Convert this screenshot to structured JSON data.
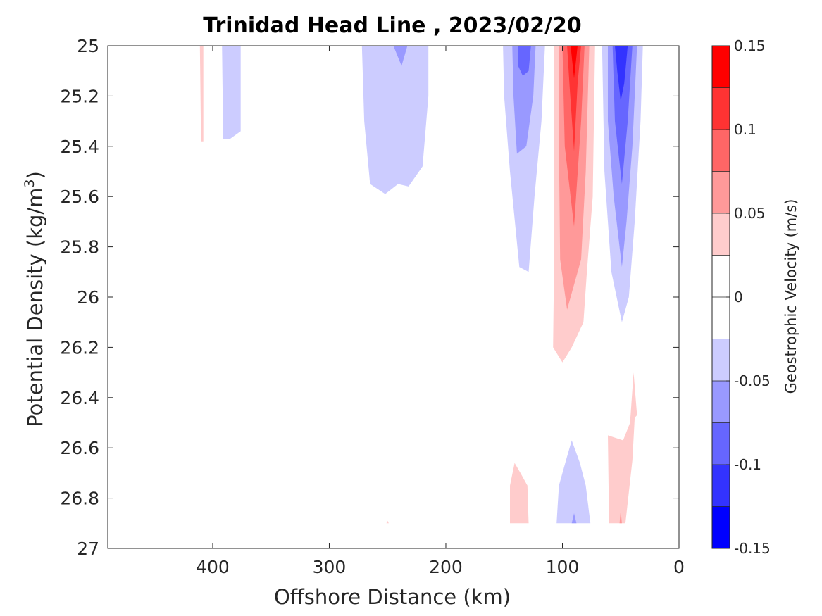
{
  "chart_data": {
    "type": "contour",
    "title": "Trinidad Head Line , 2023/02/20",
    "xlabel": "Offshore Distance (km)",
    "ylabel_main": "Potential Density (kg/m",
    "ylabel_sup": "3",
    "ylabel_close": ")",
    "xlim": [
      490,
      0
    ],
    "x_reversed": true,
    "ylim": [
      25,
      27
    ],
    "y_reversed": true,
    "xticks": [
      400,
      300,
      200,
      100,
      0
    ],
    "xtick_labels": [
      "400",
      "300",
      "200",
      "100",
      "0"
    ],
    "yticks": [
      25,
      25.2,
      25.4,
      25.6,
      25.8,
      26,
      26.2,
      26.4,
      26.6,
      26.8,
      27
    ],
    "ytick_labels": [
      "25",
      "25.2",
      "25.4",
      "25.6",
      "25.8",
      "26",
      "26.2",
      "26.4",
      "26.6",
      "26.8",
      "27"
    ],
    "colorbar": {
      "label": "Geostrophic Velocity (m/s)",
      "range": [
        -0.15,
        0.15
      ],
      "levels": [
        -0.15,
        -0.125,
        -0.1,
        -0.075,
        -0.05,
        -0.025,
        0,
        0.025,
        0.05,
        0.075,
        0.1,
        0.125,
        0.15
      ],
      "colors": [
        "#0000ff",
        "#3333ff",
        "#6666ff",
        "#9999ff",
        "#ccccff",
        "#ffffff",
        "#ffffff",
        "#ffcccc",
        "#ff9999",
        "#ff6666",
        "#ff3333",
        "#ff0000"
      ],
      "ticks": [
        0.15,
        0.1,
        0.05,
        0,
        -0.05,
        -0.1,
        -0.15
      ],
      "tick_labels": [
        "0.15",
        "0.1",
        "0.05",
        "0",
        "-0.05",
        "-0.1",
        "-0.15"
      ]
    },
    "filled_regions": [
      {
        "name": "pos-410",
        "color": "#ffcccc",
        "points": [
          [
            411,
            25
          ],
          [
            408,
            25
          ],
          [
            408,
            25.38
          ],
          [
            410,
            25.38
          ]
        ]
      },
      {
        "name": "neg-380",
        "color": "#ccccff",
        "points": [
          [
            392,
            25
          ],
          [
            376,
            25
          ],
          [
            376,
            25.34
          ],
          [
            385,
            25.37
          ],
          [
            391,
            25.37
          ]
        ]
      },
      {
        "name": "neg-250",
        "color": "#ccccff",
        "points": [
          [
            272,
            25
          ],
          [
            215,
            25
          ],
          [
            215,
            25.2
          ],
          [
            220,
            25.48
          ],
          [
            232,
            25.56
          ],
          [
            241,
            25.55
          ],
          [
            252,
            25.59
          ],
          [
            265,
            25.55
          ],
          [
            270,
            25.3
          ]
        ]
      },
      {
        "name": "neg-250-inner",
        "color": "#9999ff",
        "points": [
          [
            245,
            25
          ],
          [
            233,
            25
          ],
          [
            238,
            25.08
          ]
        ]
      },
      {
        "name": "neg-140",
        "color": "#ccccff",
        "points": [
          [
            151,
            25
          ],
          [
            115,
            25
          ],
          [
            118,
            25.3
          ],
          [
            124,
            25.6
          ],
          [
            129,
            25.9
          ],
          [
            137,
            25.88
          ],
          [
            145,
            25.5
          ],
          [
            150,
            25.2
          ]
        ]
      },
      {
        "name": "neg-140-l2",
        "color": "#9999ff",
        "points": [
          [
            143,
            25
          ],
          [
            123,
            25
          ],
          [
            125,
            25.2
          ],
          [
            131,
            25.4
          ],
          [
            139,
            25.43
          ],
          [
            142,
            25.2
          ]
        ]
      },
      {
        "name": "neg-140-l3",
        "color": "#6666ff",
        "points": [
          [
            138,
            25
          ],
          [
            127,
            25
          ],
          [
            129,
            25.1
          ],
          [
            134,
            25.12
          ],
          [
            138,
            25.08
          ]
        ]
      },
      {
        "name": "pos-95",
        "color": "#ffcccc",
        "points": [
          [
            107,
            25
          ],
          [
            72,
            25
          ],
          [
            74,
            25.6
          ],
          [
            79,
            25.9
          ],
          [
            82,
            26.1
          ],
          [
            92,
            26.2
          ],
          [
            100,
            26.26
          ],
          [
            108,
            26.2
          ],
          [
            107,
            25.8
          ]
        ]
      },
      {
        "name": "pos-95-l2",
        "color": "#ff9999",
        "points": [
          [
            103,
            25
          ],
          [
            77,
            25
          ],
          [
            80,
            25.5
          ],
          [
            84,
            25.85
          ],
          [
            96,
            26.05
          ],
          [
            102,
            25.85
          ],
          [
            103,
            25.4
          ]
        ]
      },
      {
        "name": "pos-95-l3",
        "color": "#ff6666",
        "points": [
          [
            100,
            25
          ],
          [
            81,
            25
          ],
          [
            84,
            25.3
          ],
          [
            90,
            25.72
          ],
          [
            98,
            25.4
          ]
        ]
      },
      {
        "name": "pos-95-l4",
        "color": "#ff3333",
        "points": [
          [
            96,
            25
          ],
          [
            84,
            25
          ],
          [
            87,
            25.15
          ],
          [
            90,
            25.42
          ],
          [
            94,
            25.15
          ]
        ]
      },
      {
        "name": "pos-95-l5",
        "color": "#ff0000",
        "points": [
          [
            93,
            25
          ],
          [
            87,
            25
          ],
          [
            90,
            25.13
          ]
        ]
      },
      {
        "name": "neg-50",
        "color": "#ccccff",
        "points": [
          [
            66,
            25
          ],
          [
            31,
            25
          ],
          [
            33,
            25.3
          ],
          [
            38,
            25.7
          ],
          [
            43,
            26
          ],
          [
            49,
            26.1
          ],
          [
            58,
            25.9
          ],
          [
            64,
            25.5
          ]
        ]
      },
      {
        "name": "neg-50-l2",
        "color": "#9999ff",
        "points": [
          [
            61,
            25
          ],
          [
            36,
            25
          ],
          [
            40,
            25.4
          ],
          [
            45,
            25.7
          ],
          [
            49,
            25.88
          ],
          [
            56,
            25.6
          ],
          [
            61,
            25.3
          ]
        ]
      },
      {
        "name": "neg-50-l3",
        "color": "#6666ff",
        "points": [
          [
            57,
            25
          ],
          [
            40,
            25
          ],
          [
            44,
            25.3
          ],
          [
            49,
            25.55
          ],
          [
            55,
            25.3
          ]
        ]
      },
      {
        "name": "neg-50-l4",
        "color": "#3333ff",
        "points": [
          [
            55,
            25
          ],
          [
            44,
            25
          ],
          [
            47,
            25.15
          ],
          [
            50,
            25.22
          ],
          [
            53,
            25.1
          ]
        ]
      },
      {
        "name": "pos-50-deep",
        "color": "#ffcccc",
        "points": [
          [
            61,
            26.55
          ],
          [
            60,
            26.9
          ],
          [
            46,
            26.9
          ],
          [
            40,
            26.65
          ],
          [
            38,
            26.48
          ],
          [
            36,
            26.47
          ],
          [
            39,
            26.3
          ],
          [
            42,
            26.5
          ],
          [
            48,
            26.57
          ]
        ]
      },
      {
        "name": "pos-50-deep-l2",
        "color": "#ff9999",
        "points": [
          [
            51,
            26.9
          ],
          [
            49,
            26.9
          ],
          [
            50,
            26.85
          ]
        ]
      },
      {
        "name": "neg-90-deep",
        "color": "#ccccff",
        "points": [
          [
            105,
            26.9
          ],
          [
            76,
            26.9
          ],
          [
            80,
            26.75
          ],
          [
            85,
            26.66
          ],
          [
            92,
            26.57
          ],
          [
            97,
            26.65
          ],
          [
            103,
            26.75
          ]
        ]
      },
      {
        "name": "neg-90-deep-l2",
        "color": "#9999ff",
        "points": [
          [
            92,
            26.9
          ],
          [
            88,
            26.9
          ],
          [
            90,
            26.86
          ]
        ]
      },
      {
        "name": "pos-140-deep",
        "color": "#ffcccc",
        "points": [
          [
            145,
            26.9
          ],
          [
            129,
            26.9
          ],
          [
            130,
            26.75
          ],
          [
            136,
            26.7
          ],
          [
            141,
            26.66
          ],
          [
            145,
            26.75
          ]
        ]
      },
      {
        "name": "pos-250-deep",
        "color": "#ffcccc",
        "points": [
          [
            251,
            26.9
          ],
          [
            249,
            26.9
          ],
          [
            250,
            26.89
          ]
        ]
      }
    ]
  }
}
